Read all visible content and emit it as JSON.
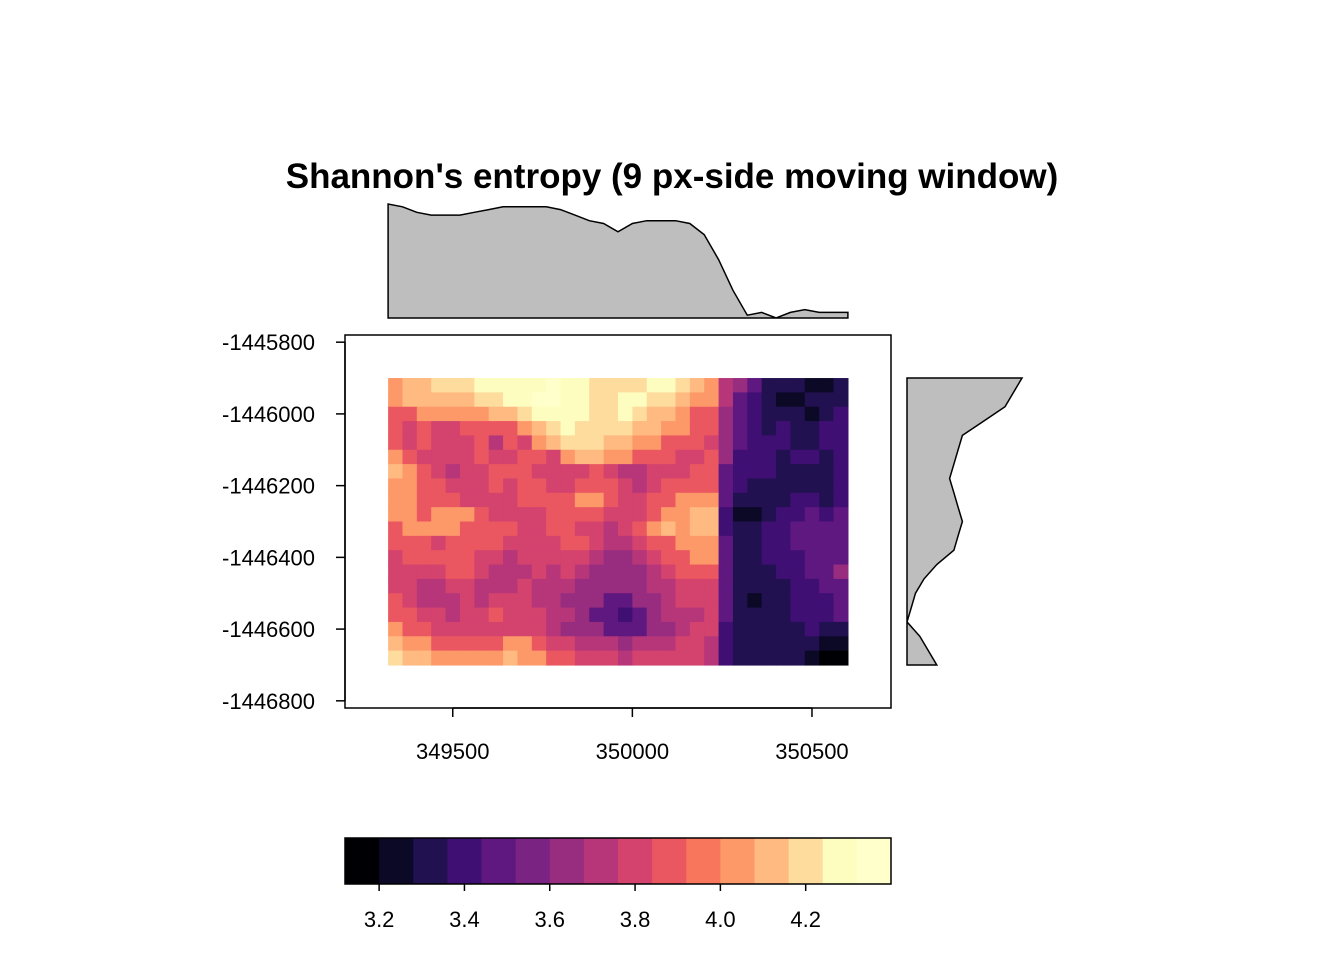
{
  "chart_data": {
    "type": "heatmap",
    "title": "Shannon's entropy (9 px-side moving window)",
    "xlabel": "",
    "ylabel": "",
    "x_axis": {
      "range": [
        349200,
        350720
      ],
      "ticks": [
        349500,
        350000,
        350500
      ],
      "tick_labels": [
        "349500",
        "350000",
        "350500"
      ]
    },
    "y_axis": {
      "range": [
        -1446820,
        -1445780
      ],
      "ticks": [
        -1445800,
        -1446000,
        -1446200,
        -1446400,
        -1446600,
        -1446800
      ],
      "tick_labels": [
        "-1445800",
        "-1446000",
        "-1446200",
        "-1446400",
        "-1446600",
        "-1446800"
      ]
    },
    "raster_extent": {
      "xmin": 349320,
      "xmax": 350600,
      "ymin": -1446700,
      "ymax": -1445900
    },
    "grid": {
      "ncols": 32,
      "nrows": 20
    },
    "values": [
      [
        4.0,
        4.1,
        4.1,
        4.2,
        4.2,
        4.2,
        4.3,
        4.3,
        4.3,
        4.3,
        4.3,
        4.4,
        4.3,
        4.3,
        4.2,
        4.2,
        4.2,
        4.2,
        4.3,
        4.3,
        4.2,
        4.1,
        4.0,
        3.7,
        3.6,
        3.5,
        3.3,
        3.3,
        3.3,
        3.2,
        3.2,
        3.3
      ],
      [
        4.0,
        4.1,
        4.1,
        4.1,
        4.1,
        4.1,
        4.2,
        4.2,
        4.3,
        4.3,
        4.4,
        4.4,
        4.3,
        4.3,
        4.2,
        4.2,
        4.3,
        4.3,
        4.2,
        4.2,
        4.1,
        4.0,
        4.0,
        3.7,
        3.5,
        3.4,
        3.3,
        3.2,
        3.2,
        3.3,
        3.3,
        3.3
      ],
      [
        3.9,
        3.9,
        4.0,
        4.0,
        4.0,
        4.0,
        4.0,
        4.1,
        4.1,
        4.2,
        4.3,
        4.3,
        4.3,
        4.3,
        4.2,
        4.2,
        4.3,
        4.2,
        4.1,
        4.1,
        4.0,
        3.9,
        3.9,
        3.6,
        3.5,
        3.4,
        3.3,
        3.3,
        3.3,
        3.2,
        3.3,
        3.4
      ],
      [
        3.9,
        3.8,
        3.9,
        3.8,
        3.8,
        3.9,
        3.9,
        3.9,
        3.9,
        4.0,
        4.1,
        4.2,
        4.3,
        4.2,
        4.2,
        4.2,
        4.2,
        4.1,
        4.1,
        4.0,
        4.0,
        3.9,
        3.9,
        3.6,
        3.5,
        3.4,
        3.3,
        3.4,
        3.3,
        3.3,
        3.4,
        3.4
      ],
      [
        3.9,
        3.8,
        3.9,
        3.8,
        3.8,
        3.8,
        3.9,
        3.7,
        3.9,
        3.8,
        4.0,
        4.1,
        4.2,
        4.2,
        4.2,
        4.1,
        4.1,
        4.0,
        4.0,
        3.9,
        3.9,
        3.9,
        3.8,
        3.6,
        3.5,
        3.4,
        3.4,
        3.4,
        3.3,
        3.3,
        3.4,
        3.4
      ],
      [
        4.0,
        3.9,
        3.8,
        3.8,
        3.8,
        3.8,
        3.9,
        3.8,
        3.8,
        3.9,
        3.9,
        3.8,
        4.0,
        4.1,
        4.1,
        4.0,
        4.0,
        3.9,
        3.9,
        3.9,
        3.8,
        3.8,
        3.9,
        3.6,
        3.4,
        3.4,
        3.4,
        3.3,
        3.4,
        3.4,
        3.3,
        3.4
      ],
      [
        4.1,
        4.0,
        3.9,
        3.8,
        3.7,
        3.8,
        3.8,
        3.9,
        3.9,
        3.9,
        3.8,
        3.8,
        3.8,
        3.8,
        3.9,
        3.8,
        3.7,
        3.7,
        3.8,
        3.8,
        3.8,
        3.9,
        3.9,
        3.5,
        3.4,
        3.4,
        3.4,
        3.3,
        3.3,
        3.3,
        3.3,
        3.4
      ],
      [
        4.0,
        4.0,
        3.9,
        3.9,
        3.8,
        3.8,
        3.8,
        3.9,
        3.8,
        3.9,
        3.9,
        3.8,
        3.8,
        3.9,
        3.9,
        3.9,
        3.8,
        3.7,
        3.8,
        3.9,
        3.9,
        3.9,
        3.9,
        3.5,
        3.4,
        3.3,
        3.3,
        3.3,
        3.3,
        3.3,
        3.3,
        3.4
      ],
      [
        4.0,
        4.0,
        3.9,
        3.9,
        3.9,
        3.8,
        3.8,
        3.8,
        3.8,
        3.9,
        3.9,
        3.9,
        3.9,
        4.0,
        4.0,
        3.9,
        3.8,
        3.8,
        3.9,
        3.9,
        4.0,
        4.0,
        4.0,
        3.5,
        3.3,
        3.3,
        3.3,
        3.3,
        3.4,
        3.4,
        3.3,
        3.4
      ],
      [
        4.0,
        4.0,
        3.9,
        4.0,
        4.0,
        4.0,
        3.9,
        3.8,
        3.8,
        3.8,
        3.8,
        3.9,
        3.9,
        3.9,
        3.9,
        3.8,
        3.8,
        3.8,
        3.9,
        4.0,
        4.0,
        4.1,
        4.1,
        3.4,
        3.2,
        3.2,
        3.3,
        3.4,
        3.4,
        3.5,
        3.4,
        3.5
      ],
      [
        3.9,
        4.0,
        4.0,
        4.0,
        4.0,
        3.9,
        3.9,
        3.9,
        3.9,
        3.8,
        3.8,
        3.9,
        3.9,
        3.8,
        3.8,
        3.7,
        3.8,
        3.9,
        4.0,
        4.1,
        4.0,
        4.1,
        4.1,
        3.4,
        3.3,
        3.3,
        3.4,
        3.4,
        3.5,
        3.5,
        3.5,
        3.5
      ],
      [
        3.9,
        3.9,
        3.9,
        3.8,
        3.9,
        3.9,
        3.9,
        3.9,
        3.8,
        3.8,
        3.8,
        3.8,
        3.9,
        3.9,
        3.8,
        3.7,
        3.7,
        3.8,
        3.9,
        3.9,
        4.0,
        4.0,
        4.0,
        3.5,
        3.3,
        3.3,
        3.4,
        3.4,
        3.5,
        3.5,
        3.5,
        3.5
      ],
      [
        3.8,
        3.9,
        3.9,
        3.9,
        3.9,
        3.9,
        3.8,
        3.8,
        3.7,
        3.8,
        3.8,
        3.8,
        3.8,
        3.8,
        3.7,
        3.6,
        3.6,
        3.7,
        3.8,
        3.9,
        3.9,
        4.0,
        4.0,
        3.5,
        3.3,
        3.3,
        3.4,
        3.4,
        3.4,
        3.5,
        3.5,
        3.5
      ],
      [
        3.8,
        3.8,
        3.8,
        3.8,
        3.9,
        3.9,
        3.8,
        3.7,
        3.7,
        3.7,
        3.8,
        3.7,
        3.8,
        3.7,
        3.6,
        3.6,
        3.6,
        3.6,
        3.7,
        3.8,
        3.9,
        3.9,
        3.9,
        3.5,
        3.3,
        3.3,
        3.3,
        3.4,
        3.4,
        3.5,
        3.5,
        3.6
      ],
      [
        3.8,
        3.8,
        3.7,
        3.7,
        3.8,
        3.8,
        3.7,
        3.7,
        3.7,
        3.8,
        3.7,
        3.7,
        3.7,
        3.6,
        3.6,
        3.6,
        3.6,
        3.6,
        3.7,
        3.7,
        3.8,
        3.8,
        3.8,
        3.5,
        3.3,
        3.3,
        3.3,
        3.3,
        3.4,
        3.4,
        3.5,
        3.5
      ],
      [
        3.9,
        3.8,
        3.7,
        3.7,
        3.7,
        3.8,
        3.7,
        3.8,
        3.8,
        3.8,
        3.7,
        3.7,
        3.6,
        3.6,
        3.6,
        3.5,
        3.5,
        3.6,
        3.6,
        3.7,
        3.8,
        3.8,
        3.8,
        3.5,
        3.3,
        3.2,
        3.3,
        3.3,
        3.4,
        3.4,
        3.4,
        3.5
      ],
      [
        3.9,
        3.9,
        3.8,
        3.8,
        3.7,
        3.8,
        3.8,
        3.9,
        3.8,
        3.8,
        3.8,
        3.7,
        3.7,
        3.6,
        3.5,
        3.5,
        3.4,
        3.5,
        3.6,
        3.7,
        3.7,
        3.7,
        3.8,
        3.5,
        3.3,
        3.3,
        3.3,
        3.3,
        3.4,
        3.4,
        3.4,
        3.5
      ],
      [
        4.0,
        3.9,
        3.9,
        3.8,
        3.8,
        3.8,
        3.8,
        3.8,
        3.8,
        3.8,
        3.8,
        3.7,
        3.6,
        3.6,
        3.6,
        3.5,
        3.5,
        3.5,
        3.6,
        3.6,
        3.7,
        3.8,
        3.8,
        3.4,
        3.3,
        3.3,
        3.3,
        3.3,
        3.3,
        3.4,
        3.3,
        3.3
      ],
      [
        4.1,
        4.0,
        4.0,
        3.9,
        3.9,
        3.9,
        3.9,
        3.9,
        4.0,
        4.0,
        3.9,
        3.8,
        3.8,
        3.7,
        3.7,
        3.7,
        3.6,
        3.7,
        3.7,
        3.7,
        3.8,
        3.8,
        3.7,
        3.4,
        3.3,
        3.3,
        3.3,
        3.3,
        3.3,
        3.3,
        3.2,
        3.2
      ],
      [
        4.2,
        4.1,
        4.1,
        4.0,
        4.0,
        4.0,
        4.0,
        4.0,
        4.1,
        4.0,
        4.0,
        3.9,
        3.9,
        3.8,
        3.8,
        3.8,
        3.7,
        3.8,
        3.8,
        3.8,
        3.8,
        3.8,
        3.7,
        3.4,
        3.3,
        3.3,
        3.3,
        3.3,
        3.3,
        3.2,
        3.1,
        3.1
      ]
    ],
    "legend": {
      "position": "bottom",
      "breaks": [
        3.12,
        3.2,
        3.28,
        3.36,
        3.44,
        3.52,
        3.6,
        3.68,
        3.76,
        3.84,
        3.92,
        4.0,
        4.08,
        4.16,
        4.24,
        4.32,
        4.4
      ],
      "colors": [
        "#000004",
        "#0C0926",
        "#221150",
        "#400F74",
        "#5F187F",
        "#7B2382",
        "#982D80",
        "#B63679",
        "#D3436E",
        "#EB5760",
        "#F8765C",
        "#FD9969",
        "#FEBA80",
        "#FDDC9E",
        "#FCFDBF",
        "#FFFFCC"
      ],
      "tick_values": [
        3.2,
        3.4,
        3.6,
        3.8,
        4.0,
        4.2
      ],
      "tick_labels": [
        "3.2",
        "3.4",
        "3.6",
        "3.8",
        "4.0",
        "4.2"
      ]
    },
    "marginal_x": {
      "type": "area",
      "x": [
        349320,
        349360,
        349400,
        349440,
        349480,
        349520,
        349560,
        349600,
        349640,
        349680,
        349720,
        349760,
        349800,
        349840,
        349880,
        349920,
        349960,
        350000,
        350040,
        350080,
        350120,
        350160,
        350200,
        350240,
        350280,
        350320,
        350360,
        350400,
        350440,
        350480,
        350520,
        350560,
        350600
      ],
      "y": [
        3.83,
        3.82,
        3.8,
        3.79,
        3.79,
        3.79,
        3.8,
        3.81,
        3.82,
        3.82,
        3.82,
        3.82,
        3.81,
        3.79,
        3.77,
        3.76,
        3.73,
        3.76,
        3.77,
        3.77,
        3.77,
        3.76,
        3.72,
        3.63,
        3.52,
        3.43,
        3.44,
        3.42,
        3.44,
        3.45,
        3.44,
        3.44,
        3.44
      ]
    },
    "marginal_y": {
      "type": "area",
      "y": [
        -1445900,
        -1445940,
        -1445980,
        -1446020,
        -1446060,
        -1446100,
        -1446140,
        -1446180,
        -1446220,
        -1446260,
        -1446300,
        -1446340,
        -1446380,
        -1446420,
        -1446460,
        -1446500,
        -1446540,
        -1446580,
        -1446620,
        -1446660,
        -1446700
      ],
      "x": [
        3.95,
        3.93,
        3.91,
        3.86,
        3.81,
        3.8,
        3.79,
        3.78,
        3.79,
        3.8,
        3.81,
        3.8,
        3.79,
        3.75,
        3.72,
        3.7,
        3.69,
        3.68,
        3.71,
        3.73,
        3.75
      ]
    },
    "colors": {
      "fill_marginal": "#BEBEBE",
      "axis": "#000000",
      "background": "#FFFFFF"
    }
  }
}
